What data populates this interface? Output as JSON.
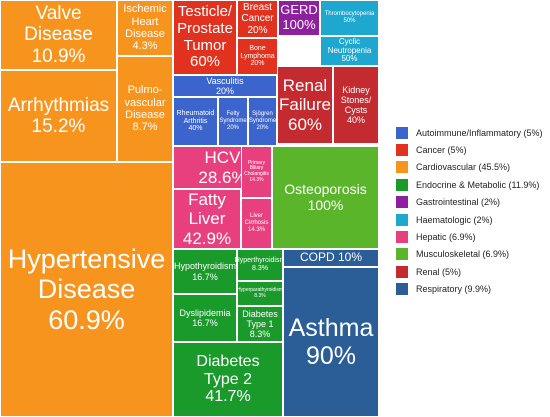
{
  "chart_data": {
    "type": "treemap",
    "title": "",
    "groups": [
      {
        "name": "Cardiovascular",
        "share": 45.5,
        "color": "#f7941d",
        "children": [
          {
            "name": "Hypertensive Disease",
            "value": 60.9
          },
          {
            "name": "Arrhythmias",
            "value": 15.2
          },
          {
            "name": "Valve Disease",
            "value": 10.9
          },
          {
            "name": "Pulmovascular Disease",
            "value": 8.7
          },
          {
            "name": "Ischemic Heart Disease",
            "value": 4.3
          }
        ]
      },
      {
        "name": "Cancer",
        "share": 5,
        "color": "#e0321f",
        "children": [
          {
            "name": "Testicle/ Prostate Tumor",
            "value": 60
          },
          {
            "name": "Breast Cancer",
            "value": 20
          },
          {
            "name": "Bone Lymphoma",
            "value": 20
          }
        ]
      },
      {
        "name": "Autoimmune/Inflammatory",
        "share": 5,
        "color": "#3b64cc",
        "children": [
          {
            "name": "Vasculitis",
            "value": 20
          },
          {
            "name": "Rheumatoid Arthritis",
            "value": 40
          },
          {
            "name": "Felty Syndrome",
            "value": 20
          },
          {
            "name": "Sjögren Syndrome",
            "value": 20
          }
        ]
      },
      {
        "name": "Gastrointestinal",
        "share": 2,
        "color": "#8e1f9e",
        "children": [
          {
            "name": "GERD",
            "value": 100
          }
        ]
      },
      {
        "name": "Haematologic",
        "share": 2,
        "color": "#1ea7cf",
        "children": [
          {
            "name": "Thrombocytopenia",
            "value": 50
          },
          {
            "name": "Cyclic Neutropenia",
            "value": 50
          }
        ]
      },
      {
        "name": "Renal",
        "share": 5,
        "color": "#c42b31",
        "children": [
          {
            "name": "Renal Failure",
            "value": 60
          },
          {
            "name": "Kidney Stones/ Cysts",
            "value": 40
          }
        ]
      },
      {
        "name": "Hepatic",
        "share": 6.9,
        "color": "#e8407f",
        "children": [
          {
            "name": "HCV",
            "value": 28.6
          },
          {
            "name": "Fatty Liver",
            "value": 42.9
          },
          {
            "name": "Primary Biliary Cholangitis",
            "value": 14.3
          },
          {
            "name": "Liver Cirrhosis",
            "value": 14.3
          }
        ]
      },
      {
        "name": "Musculoskeletal",
        "share": 6.9,
        "color": "#5ab52b",
        "children": [
          {
            "name": "Osteoporosis",
            "value": 100
          }
        ]
      },
      {
        "name": "Endocrine & Metabolic",
        "share": 11.9,
        "color": "#1a9a2b",
        "children": [
          {
            "name": "Hypothyroidism",
            "value": 16.7
          },
          {
            "name": "Hyperthyroidism",
            "value": 8.3
          },
          {
            "name": "Hyperparathyroidism",
            "value": 8.3
          },
          {
            "name": "Dyslipidemia",
            "value": 16.7
          },
          {
            "name": "Diabetes Type 1",
            "value": 8.3
          },
          {
            "name": "Diabetes Type 2",
            "value": 41.7
          }
        ]
      },
      {
        "name": "Respiratory",
        "share": 9.9,
        "color": "#2b5d96",
        "children": [
          {
            "name": "COPD",
            "value": 10
          },
          {
            "name": "Asthma",
            "value": 90
          }
        ]
      }
    ],
    "cells": [
      {
        "group": "Cardiovascular",
        "text": "Valve\nDisease\n10.9%"
      },
      {
        "group": "Cardiovascular",
        "text": "Ischemic\nHeart\nDisease\n4.3%"
      },
      {
        "group": "Cardiovascular",
        "text": "Arrhythmias\n15.2%"
      },
      {
        "group": "Cardiovascular",
        "text": "Pulmo-\nvascular\nDisease\n8.7%"
      },
      {
        "group": "Cardiovascular",
        "text": "Hypertensive\nDisease\n60.9%"
      },
      {
        "group": "Cancer",
        "text": "Testicle/\nProstate\nTumor\n60%"
      },
      {
        "group": "Cancer",
        "text": "Breast\nCancer\n20%"
      },
      {
        "group": "Cancer",
        "text": "Bone\nLymphoma\n20%"
      },
      {
        "group": "Gastrointestinal",
        "text": "GERD\n100%"
      },
      {
        "group": "Haematologic",
        "text": "Thrombocytopenia\n50%"
      },
      {
        "group": "Haematologic",
        "text": "Cyclic\nNeutropenia\n50%"
      },
      {
        "group": "Autoimmune/Inflammatory",
        "text": "Vasculitis\n20%"
      },
      {
        "group": "Autoimmune/Inflammatory",
        "text": "Rheumatoid\nArthritis\n40%"
      },
      {
        "group": "Autoimmune/Inflammatory",
        "text": "Felty\nSyndrome\n20%"
      },
      {
        "group": "Autoimmune/Inflammatory",
        "text": "Sjögren\nSyndrome\n20%"
      },
      {
        "group": "Renal",
        "text": "Renal\nFailure\n60%"
      },
      {
        "group": "Renal",
        "text": "Kidney\nStones/\nCysts\n40%"
      },
      {
        "group": "Hepatic",
        "text": "HCV\n28.6%"
      },
      {
        "group": "Hepatic",
        "text": "Primary\nBiliary\nCholangitis\n14.3%"
      },
      {
        "group": "Hepatic",
        "text": "Fatty\nLiver\n42.9%"
      },
      {
        "group": "Hepatic",
        "text": "Liver\nCirrhosis\n14.3%"
      },
      {
        "group": "Musculoskeletal",
        "text": "Osteoporosis\n100%"
      },
      {
        "group": "Endocrine & Metabolic",
        "text": "Hypothyroidism\n16.7%"
      },
      {
        "group": "Endocrine & Metabolic",
        "text": "Hyperthyroidism\n8.3%"
      },
      {
        "group": "Endocrine & Metabolic",
        "text": "Hyperparathyroidism\n8.3%"
      },
      {
        "group": "Endocrine & Metabolic",
        "text": "Dyslipidemia\n16.7%"
      },
      {
        "group": "Endocrine & Metabolic",
        "text": "Diabetes\nType 1\n8.3%"
      },
      {
        "group": "Endocrine & Metabolic",
        "text": "Diabetes\nType 2\n41.7%"
      },
      {
        "group": "Respiratory",
        "text": "COPD 10%"
      },
      {
        "group": "Respiratory",
        "text": "Asthma\n90%"
      }
    ],
    "legend": {
      "placement": "right",
      "entries": [
        {
          "label": "Autoimmune/Inflammatory (5%)",
          "color": "#3b64cc"
        },
        {
          "label": "Cancer (5%)",
          "color": "#e0321f"
        },
        {
          "label": "Cardiovascular (45.5%)",
          "color": "#f7941d"
        },
        {
          "label": "Endocrine & Metabolic (11.9%)",
          "color": "#1a9a2b"
        },
        {
          "label": "Gastrointestinal (2%)",
          "color": "#8e1f9e"
        },
        {
          "label": "Haematologic (2%)",
          "color": "#1ea7cf"
        },
        {
          "label": "Hepatic (6.9%)",
          "color": "#e8407f"
        },
        {
          "label": "Musculoskeletal (6.9%)",
          "color": "#5ab52b"
        },
        {
          "label": "Renal (5%)",
          "color": "#c42b31"
        },
        {
          "label": "Respiratory (9.9%)",
          "color": "#2b5d96"
        }
      ]
    }
  }
}
